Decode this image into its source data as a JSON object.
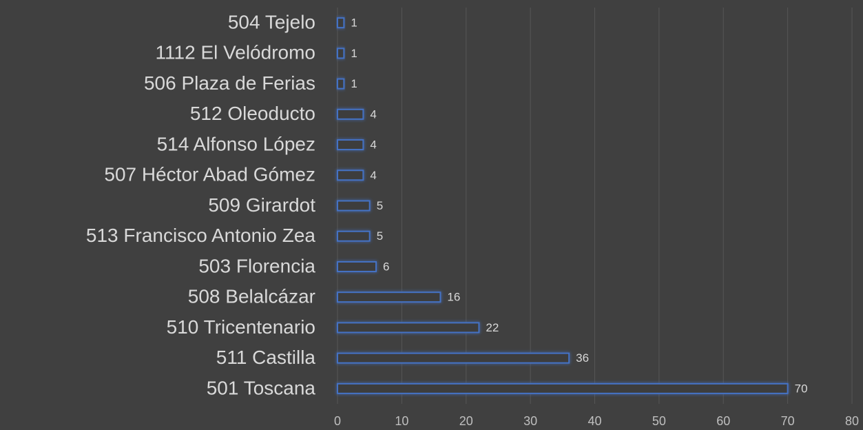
{
  "chart_data": {
    "type": "bar",
    "orientation": "horizontal",
    "categories": [
      "504 Tejelo",
      "1112 El Velódromo",
      "506 Plaza de Ferias",
      "512 Oleoducto",
      "514 Alfonso López",
      "507 Héctor Abad Gómez",
      "509 Girardot",
      "513 Francisco Antonio Zea",
      "503 Florencia",
      "508 Belalcázar",
      "510 Tricentenario",
      "511 Castilla",
      "501 Toscana"
    ],
    "values": [
      1,
      1,
      1,
      4,
      4,
      4,
      5,
      5,
      6,
      16,
      22,
      36,
      70
    ],
    "color": "#4472c4",
    "xlim": [
      0,
      80
    ],
    "xticks": [
      0,
      10,
      20,
      30,
      40,
      50,
      60,
      70,
      80
    ],
    "grid": true
  }
}
